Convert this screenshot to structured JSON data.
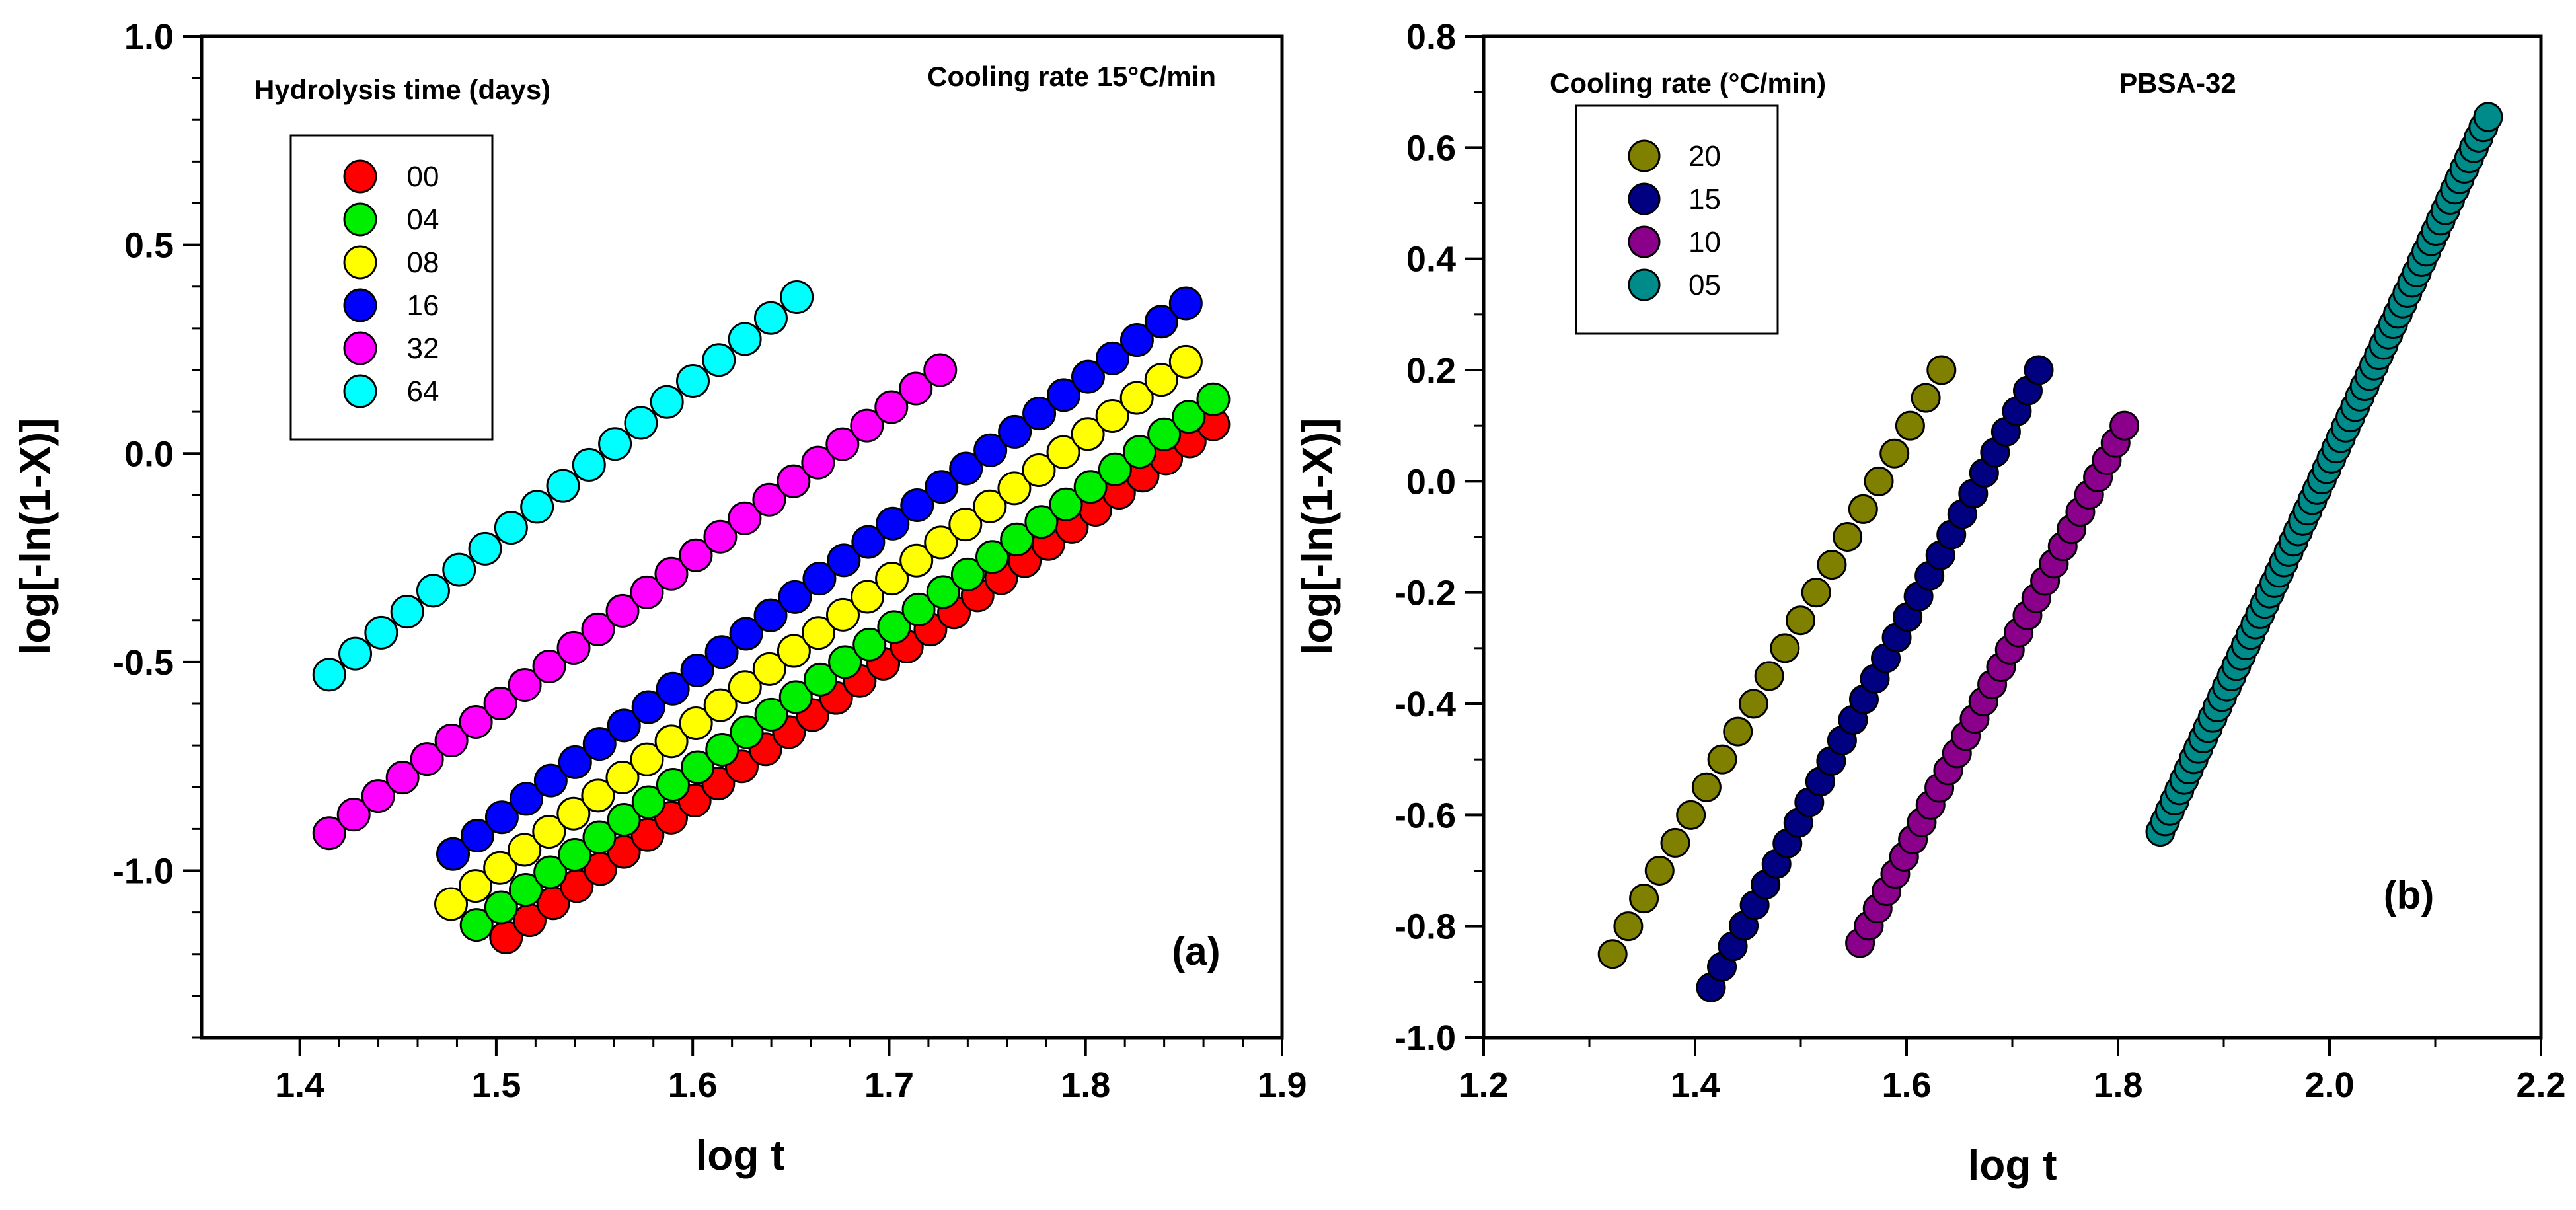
{
  "chart_data": [
    {
      "type": "scatter",
      "panel_label": "(a)",
      "title": "",
      "xlabel": "log t",
      "ylabel": "log[-ln(1-X)]",
      "xlim": [
        1.35,
        1.9
      ],
      "ylim": [
        -1.4,
        1.0
      ],
      "xticks": [
        1.4,
        1.5,
        1.6,
        1.7,
        1.8,
        1.9
      ],
      "xtick_labels": [
        "1.4",
        "1.5",
        "1.6",
        "1.7",
        "1.8",
        "1.9"
      ],
      "yticks": [
        -1.0,
        -0.5,
        0.0,
        0.5,
        1.0
      ],
      "ytick_labels": [
        "-1.0",
        "-0.5",
        "0.0",
        "0.5",
        "1.0"
      ],
      "annotation": "Cooling rate 15°C/min",
      "legend_title": "Hydrolysis time (days)",
      "legend_position": "top-left",
      "series": [
        {
          "name": "00",
          "color": "#ff0000",
          "x_start": 1.505,
          "x_end": 1.865,
          "y_start": -1.16,
          "y_end": 0.07,
          "n": 31
        },
        {
          "name": "04",
          "color": "#00ee00",
          "x_start": 1.49,
          "x_end": 1.865,
          "y_start": -1.13,
          "y_end": 0.13,
          "n": 31
        },
        {
          "name": "08",
          "color": "#ffff00",
          "x_start": 1.477,
          "x_end": 1.851,
          "y_start": -1.08,
          "y_end": 0.22,
          "n": 31
        },
        {
          "name": "16",
          "color": "#0000ff",
          "x_start": 1.478,
          "x_end": 1.851,
          "y_start": -0.96,
          "y_end": 0.36,
          "n": 31
        },
        {
          "name": "32",
          "color": "#ff00ff",
          "x_start": 1.415,
          "x_end": 1.726,
          "y_start": -0.91,
          "y_end": 0.2,
          "n": 26
        },
        {
          "name": "64",
          "color": "#00ffff",
          "x_start": 1.415,
          "x_end": 1.653,
          "y_start": -0.53,
          "y_end": 0.375,
          "n": 19
        }
      ]
    },
    {
      "type": "scatter",
      "panel_label": "(b)",
      "title": "",
      "xlabel": "log t",
      "ylabel": "log[-ln(1-X)]",
      "xlim": [
        1.2,
        2.2
      ],
      "ylim": [
        -1.0,
        0.8
      ],
      "xticks": [
        1.2,
        1.4,
        1.6,
        1.8,
        2.0,
        2.2
      ],
      "xtick_labels": [
        "1.2",
        "1.4",
        "1.6",
        "1.8",
        "2.0",
        "2.2"
      ],
      "yticks": [
        -1.0,
        -0.8,
        -0.6,
        -0.4,
        -0.2,
        0.0,
        0.2,
        0.4,
        0.6,
        0.8
      ],
      "ytick_labels": [
        "-1.0",
        "-0.8",
        "-0.6",
        "-0.4",
        "-0.2",
        "0.0",
        "0.2",
        "0.4",
        "0.6",
        "0.8"
      ],
      "annotation": "PBSA-32",
      "legend_title": "Cooling rate (°C/min)",
      "legend_position": "top-left",
      "series": [
        {
          "name": "20",
          "color": "#808000",
          "x_start": 1.322,
          "x_end": 1.633,
          "y_start": -0.85,
          "y_end": 0.2,
          "n": 22
        },
        {
          "name": "15",
          "color": "#000080",
          "x_start": 1.415,
          "x_end": 1.725,
          "y_start": -0.91,
          "y_end": 0.2,
          "n": 31
        },
        {
          "name": "10",
          "color": "#8b008b",
          "x_start": 1.556,
          "x_end": 1.806,
          "y_start": -0.83,
          "y_end": 0.1,
          "n": 31
        },
        {
          "name": "05",
          "color": "#008b8b",
          "x_start": 1.84,
          "x_end": 2.15,
          "y_start": -0.63,
          "y_end": 0.655,
          "n": 70
        }
      ]
    }
  ]
}
